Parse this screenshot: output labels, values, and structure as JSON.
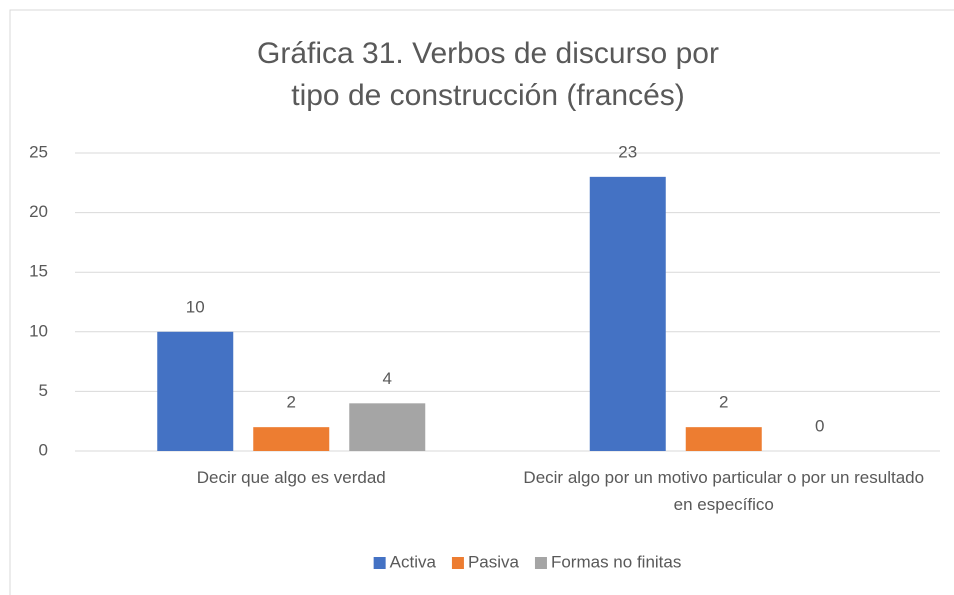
{
  "chart_data": {
    "type": "bar",
    "title": "Gráfica 31. Verbos de discurso por tipo de construcción (francés)",
    "categories": [
      "Decir que algo es verdad",
      "Decir algo por un motivo particular o por un resultado en específico"
    ],
    "series": [
      {
        "name": "Activa",
        "color": "#4472c4",
        "values": [
          10,
          23
        ]
      },
      {
        "name": "Pasiva",
        "color": "#ed7d31",
        "values": [
          2,
          2
        ]
      },
      {
        "name": "Formas no finitas",
        "color": "#a5a5a5",
        "values": [
          4,
          0
        ]
      }
    ],
    "ylim": [
      0,
      25
    ],
    "yticks": [
      0,
      5,
      10,
      15,
      20,
      25
    ],
    "grid": true,
    "legend": "bottom"
  }
}
